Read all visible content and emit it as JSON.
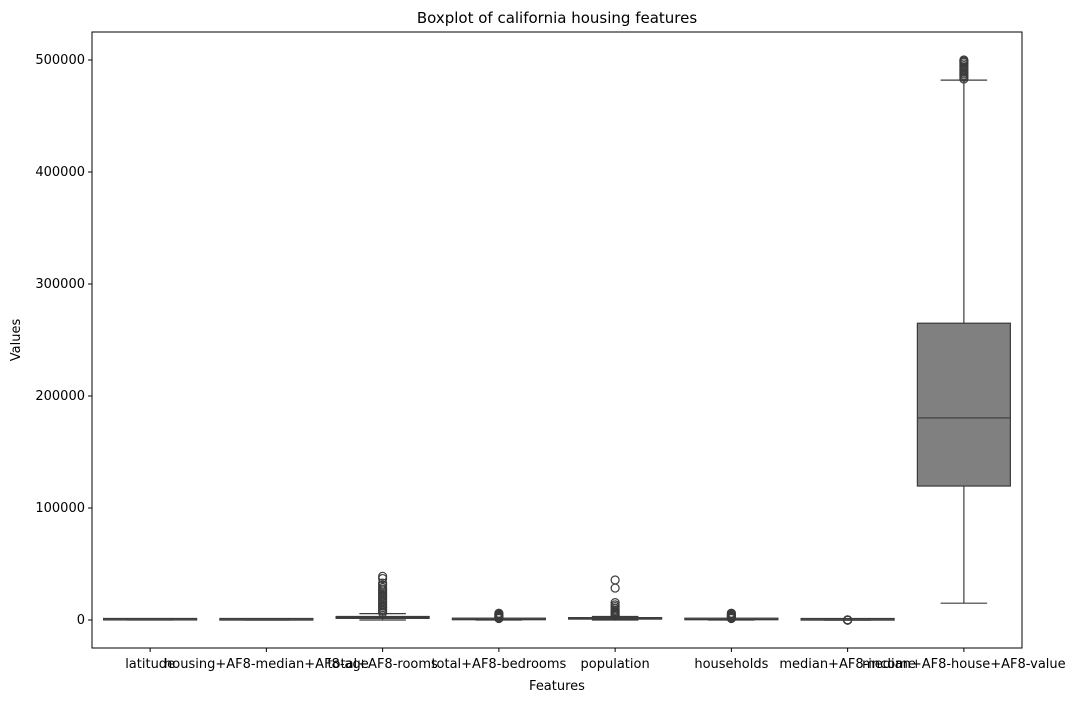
{
  "chart_data": {
    "type": "box",
    "title": "Boxplot of california housing features",
    "xlabel": "Features",
    "ylabel": "Values",
    "ylim": [
      -25000,
      525000
    ],
    "yticks": [
      0,
      100000,
      200000,
      300000,
      400000,
      500000
    ],
    "grid": false,
    "box_color": "#808080",
    "line_color": "#3b3b3b",
    "categories": [
      "latitude",
      "housing+AF8-median+AF8-age",
      "total+AF8-rooms",
      "total+AF8-bedrooms",
      "population",
      "households",
      "median+AF8-income",
      "median+AF8-house+AF8-value"
    ],
    "boxes": [
      {
        "min": 33,
        "q1": 34,
        "median": 34,
        "q3": 38,
        "max": 42,
        "outliers": []
      },
      {
        "min": 1,
        "q1": 18,
        "median": 29,
        "q3": 37,
        "max": 52,
        "outliers": []
      },
      {
        "min": 2,
        "q1": 1450,
        "median": 2130,
        "q3": 3150,
        "max": 5700,
        "outliers": [
          6500,
          8000,
          9500,
          11000,
          12500,
          14000,
          15500,
          17000,
          18500,
          20000,
          21500,
          23000,
          24500,
          26000,
          27500,
          29000,
          31000,
          33000,
          37000,
          39000
        ]
      },
      {
        "min": 1,
        "q1": 300,
        "median": 430,
        "q3": 650,
        "max": 1170,
        "outliers": [
          1300,
          1700,
          2200,
          2800,
          3400,
          4000,
          4600,
          5200,
          6000
        ]
      },
      {
        "min": 3,
        "q1": 790,
        "median": 1170,
        "q3": 1730,
        "max": 3150,
        "outliers": [
          3500,
          4200,
          5000,
          6000,
          7000,
          8000,
          9000,
          10500,
          12000,
          13500,
          15500,
          28500,
          35700
        ]
      },
      {
        "min": 1,
        "q1": 280,
        "median": 410,
        "q3": 605,
        "max": 1090,
        "outliers": [
          1300,
          1700,
          2200,
          2800,
          3400,
          4000,
          4600,
          5400,
          6100
        ]
      },
      {
        "min": 0.5,
        "q1": 2.6,
        "median": 3.5,
        "q3": 4.8,
        "max": 8.0,
        "outliers": [
          9,
          10,
          11,
          12,
          13,
          15
        ]
      },
      {
        "min": 14999,
        "q1": 119600,
        "median": 180400,
        "q3": 265000,
        "max": 482000,
        "outliers": [
          483000,
          484500,
          486000,
          487500,
          489000,
          490500,
          492000,
          493500,
          495000,
          496500,
          498000,
          499000,
          500001
        ]
      }
    ]
  }
}
